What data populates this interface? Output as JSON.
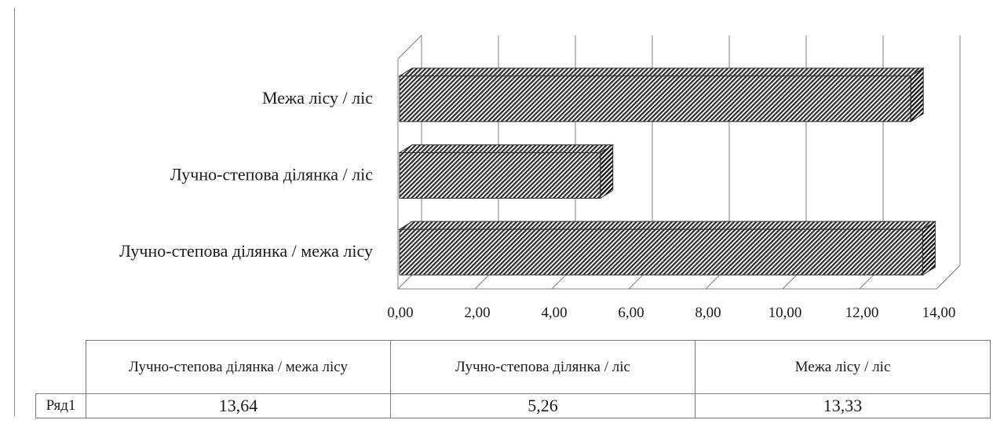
{
  "chart_data": {
    "type": "bar",
    "orientation": "horizontal",
    "style": "3d-clustered-bar",
    "categories": [
      "Лучно-степова ділянка / межа лісу",
      "Лучно-степова ділянка / ліс",
      "Межа лісу / ліс"
    ],
    "series": [
      {
        "name": "Ряд1",
        "values": [
          13.64,
          5.26,
          13.33
        ]
      }
    ],
    "xlim": [
      0,
      14
    ],
    "x_ticks": [
      "0,00",
      "2,00",
      "4,00",
      "6,00",
      "8,00",
      "10,00",
      "12,00",
      "14,00"
    ],
    "grid": true,
    "legend": "none",
    "data_table": true
  },
  "table": {
    "headers": [
      "Лучно-степова ділянка / межа лісу",
      "Лучно-степова ділянка / ліс",
      "Межа лісу / ліс"
    ],
    "row_label": "Ряд1",
    "values": [
      "13,64",
      "5,26",
      "13,33"
    ]
  },
  "colors": {
    "bar_dark": "#2e2e2e",
    "bar_light": "#ffffff",
    "gridline": "#808080"
  }
}
